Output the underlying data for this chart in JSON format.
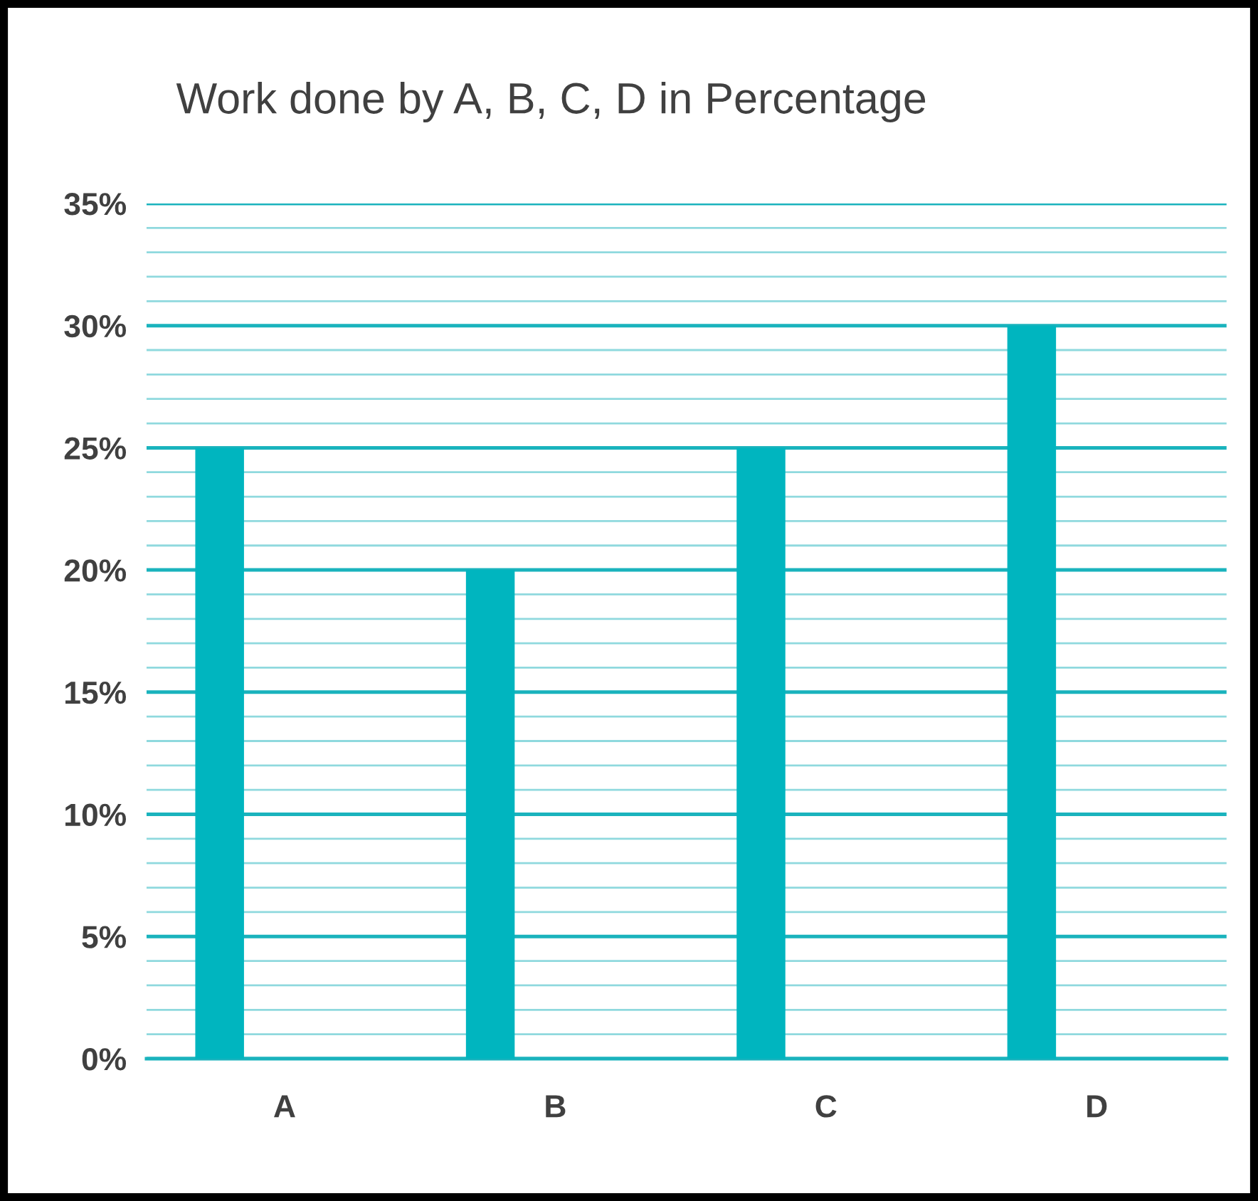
{
  "chart_data": {
    "type": "bar",
    "title": "Work done by A, B, C, D in Percentage",
    "categories": [
      "A",
      "B",
      "C",
      "D"
    ],
    "values": [
      25,
      20,
      25,
      30
    ],
    "color": "#00b5bf",
    "ylim": [
      0,
      35
    ],
    "yticks": [
      {
        "value": 0,
        "label": "0%"
      },
      {
        "value": 1,
        "label": null
      },
      {
        "value": 2,
        "label": null
      },
      {
        "value": 3,
        "label": null
      },
      {
        "value": 4,
        "label": null
      },
      {
        "value": 5,
        "label": "5%"
      },
      {
        "value": 6,
        "label": null
      },
      {
        "value": 7,
        "label": null
      },
      {
        "value": 8,
        "label": null
      },
      {
        "value": 9,
        "label": null
      },
      {
        "value": 10,
        "label": "10%"
      },
      {
        "value": 11,
        "label": null
      },
      {
        "value": 12,
        "label": null
      },
      {
        "value": 13,
        "label": null
      },
      {
        "value": 14,
        "label": null
      },
      {
        "value": 15,
        "label": "15%"
      },
      {
        "value": 16,
        "label": null
      },
      {
        "value": 17,
        "label": null
      },
      {
        "value": 18,
        "label": null
      },
      {
        "value": 19,
        "label": null
      },
      {
        "value": 20,
        "label": "20%"
      },
      {
        "value": 21,
        "label": null
      },
      {
        "value": 22,
        "label": null
      },
      {
        "value": 23,
        "label": null
      },
      {
        "value": 24,
        "label": null
      },
      {
        "value": 25,
        "label": "25%"
      },
      {
        "value": 26,
        "label": null
      },
      {
        "value": 27,
        "label": null
      },
      {
        "value": 28,
        "label": null
      },
      {
        "value": 29,
        "label": null
      },
      {
        "value": 30,
        "label": "30%"
      },
      {
        "value": 31,
        "label": null
      },
      {
        "value": 32,
        "label": null
      },
      {
        "value": 33,
        "label": null
      },
      {
        "value": 34,
        "label": null
      },
      {
        "value": 35,
        "label": "35%"
      }
    ],
    "grid": "y"
  }
}
